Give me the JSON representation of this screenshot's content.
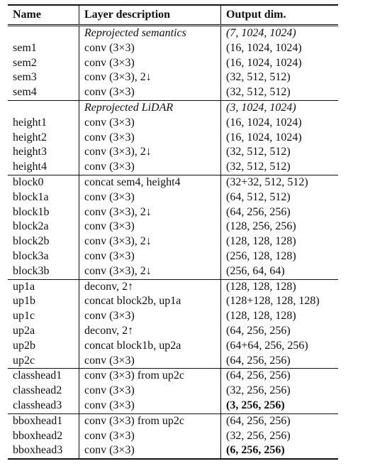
{
  "headers": [
    "Name",
    "Layer description",
    "Output dim."
  ],
  "groups": [
    {
      "subheader": {
        "desc": "Reprojected semantics",
        "dim": "(7, 1024, 1024)"
      },
      "rows": [
        {
          "name": "sem1",
          "desc": "conv (3×3)",
          "dim": "(16, 1024, 1024)"
        },
        {
          "name": "sem2",
          "desc": "conv (3×3)",
          "dim": "(16, 1024, 1024)"
        },
        {
          "name": "sem3",
          "desc": "conv (3×3), 2↓",
          "dim": "(32, 512, 512)"
        },
        {
          "name": "sem4",
          "desc": "conv (3×3)",
          "dim": "(32, 512, 512)"
        }
      ]
    },
    {
      "subheader": {
        "desc": "Reprojected LiDAR",
        "dim": "(3, 1024, 1024)"
      },
      "rows": [
        {
          "name": "height1",
          "desc": "conv (3×3)",
          "dim": "(16, 1024, 1024)"
        },
        {
          "name": "height2",
          "desc": "conv (3×3)",
          "dim": "(16, 1024, 1024)"
        },
        {
          "name": "height3",
          "desc": "conv (3×3), 2↓",
          "dim": "(32, 512, 512)"
        },
        {
          "name": "height4",
          "desc": "conv (3×3)",
          "dim": "(32, 512, 512)"
        }
      ]
    },
    {
      "rows": [
        {
          "name": "block0",
          "desc": "concat sem4, height4",
          "dim": "(32+32, 512, 512)"
        },
        {
          "name": "block1a",
          "desc": "conv (3×3)",
          "dim": "(64, 512, 512)"
        },
        {
          "name": "block1b",
          "desc": "conv (3×3), 2↓",
          "dim": "(64, 256, 256)"
        },
        {
          "name": "block2a",
          "desc": "conv (3×3)",
          "dim": "(128, 256, 256)"
        },
        {
          "name": "block2b",
          "desc": "conv (3×3), 2↓",
          "dim": "(128, 128, 128)"
        },
        {
          "name": "block3a",
          "desc": "conv (3×3)",
          "dim": "(256, 128, 128)"
        },
        {
          "name": "block3b",
          "desc": "conv (3×3), 2↓",
          "dim": "(256, 64, 64)"
        }
      ]
    },
    {
      "rows": [
        {
          "name": "up1a",
          "desc": "deconv, 2↑",
          "dim": "(128, 128, 128)"
        },
        {
          "name": "up1b",
          "desc": "concat block2b, up1a",
          "dim": "(128+128, 128, 128)"
        },
        {
          "name": "up1c",
          "desc": "conv (3×3)",
          "dim": "(128, 128, 128)"
        },
        {
          "name": "up2a",
          "desc": "deconv, 2↑",
          "dim": "(64, 256, 256)"
        },
        {
          "name": "up2b",
          "desc": "concat block1b, up2a",
          "dim": "(64+64, 256, 256)"
        },
        {
          "name": "up2c",
          "desc": "conv (3×3)",
          "dim": "(64, 256, 256)"
        }
      ]
    },
    {
      "rows": [
        {
          "name": "classhead1",
          "desc": "conv (3×3) from up2c",
          "dim": "(64, 256, 256)"
        },
        {
          "name": "classhead2",
          "desc": "conv (3×3)",
          "dim": "(32, 256, 256)"
        },
        {
          "name": "classhead3",
          "desc": "conv (3×3)",
          "dim": "(3, 256, 256)",
          "bold": true
        }
      ]
    },
    {
      "rows": [
        {
          "name": "bboxhead1",
          "desc": "conv (3×3) from up2c",
          "dim": "(64, 256, 256)"
        },
        {
          "name": "bboxhead2",
          "desc": "conv (3×3)",
          "dim": "(32, 256, 256)"
        },
        {
          "name": "bboxhead3",
          "desc": "conv (3×3)",
          "dim": "(6, 256, 256)",
          "bold": true
        }
      ]
    }
  ]
}
